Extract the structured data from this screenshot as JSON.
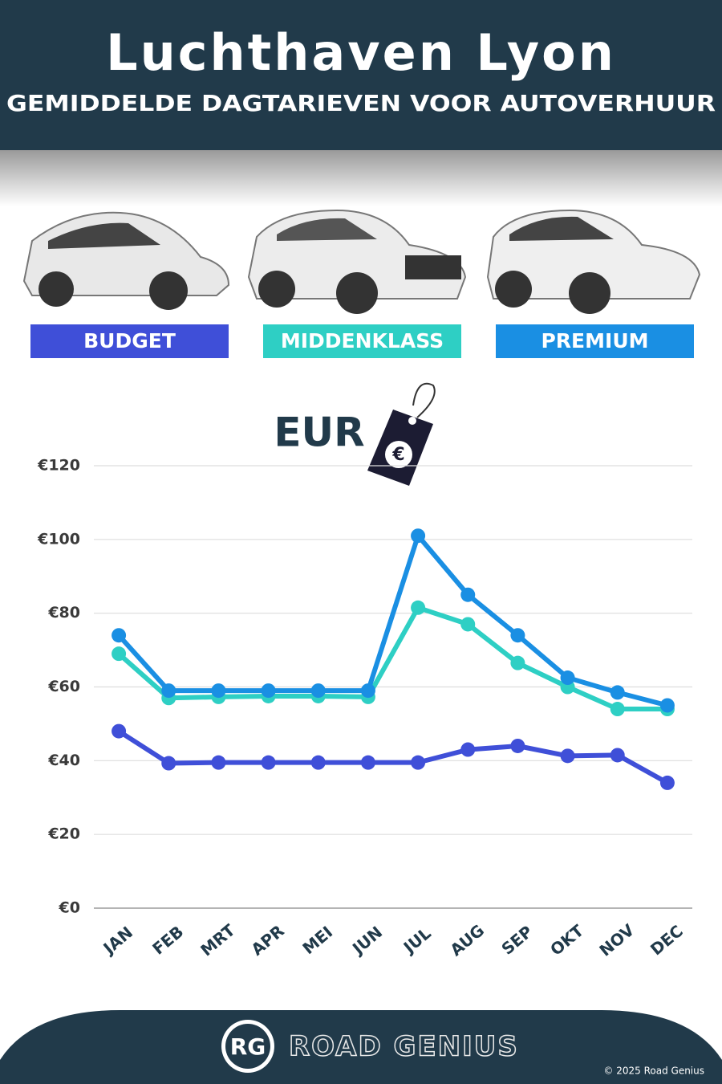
{
  "chart_data": {
    "type": "line",
    "title": "Luchthaven Lyon",
    "subtitle": "GEMIDDELDE DAGTARIEVEN VOOR AUTOVERHUUR",
    "unit_label": "EUR",
    "unit_symbol": "€",
    "categories": [
      "JAN",
      "FEB",
      "MRT",
      "APR",
      "MEI",
      "JUN",
      "JUL",
      "AUG",
      "SEP",
      "OKT",
      "NOV",
      "DEC"
    ],
    "series": [
      {
        "name": "BUDGET",
        "color": "#3f4fd8",
        "values": [
          48,
          39.3,
          39.5,
          39.5,
          39.5,
          39.5,
          39.5,
          43,
          44,
          41.3,
          41.5,
          34
        ]
      },
      {
        "name": "MIDDENKLASS",
        "color": "#2ecfc4",
        "values": [
          69,
          57,
          57.3,
          57.5,
          57.5,
          57.3,
          81.5,
          77,
          66.5,
          60,
          54,
          54
        ]
      },
      {
        "name": "PREMIUM",
        "color": "#1a8fe3",
        "values": [
          74,
          59,
          59,
          59,
          59,
          59,
          101,
          85,
          74,
          62.5,
          58.5,
          55
        ]
      }
    ],
    "ylim": [
      0,
      120
    ],
    "yticks": [
      {
        "value": 0,
        "label": "€0"
      },
      {
        "value": 20,
        "label": "€20"
      },
      {
        "value": 40,
        "label": "€40"
      },
      {
        "value": 60,
        "label": "€60"
      },
      {
        "value": 80,
        "label": "€80"
      },
      {
        "value": 100,
        "label": "€100"
      },
      {
        "value": 120,
        "label": "€120"
      }
    ],
    "grid": true
  },
  "footer": {
    "logo": "RG",
    "brand": "ROAD GENIUS",
    "copyright": "© 2025 Road Genius"
  }
}
